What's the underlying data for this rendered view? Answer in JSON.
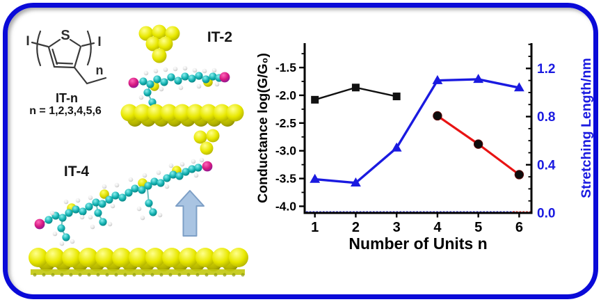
{
  "colors": {
    "frame": "#0a0ad8",
    "chart_blue": "#1a1ae0",
    "chart_red": "#e81313",
    "gold": "#e8e800",
    "arrow_fill": "#a9c4e2",
    "arrow_edge": "#7d9fc6"
  },
  "left_panel": {
    "structure": {
      "iodine_left": "I",
      "iodine_right": "I",
      "sulfur": "S",
      "repeat_subscript": "n",
      "name": "IT-n",
      "series_note": "n = 1,2,3,4,5,6"
    },
    "it2": {
      "label": "IT-2"
    },
    "it4": {
      "label": "IT-4"
    }
  },
  "chart_data": {
    "type": "line",
    "title": "",
    "xlabel": "Number of Units n",
    "ylabel_left": "Conductance log(G/G₀)",
    "ylabel_right": "Stretching Length/nm",
    "xlim": [
      0.75,
      6.3
    ],
    "ylim_left": [
      -4.12,
      -1.06
    ],
    "ylim_right": [
      0,
      1.41
    ],
    "xticks": [
      "1",
      "2",
      "3",
      "4",
      "5",
      "6"
    ],
    "yticks_left": [
      "-1.5",
      "-2.0",
      "-2.5",
      "-3.0",
      "-3.5",
      "-4.0"
    ],
    "yticks_right": [
      "0.0",
      "0.4",
      "0.8",
      "1.2"
    ],
    "yminor_left": [
      -1.25,
      -1.75,
      -2.25,
      -2.75,
      -3.25,
      -3.75
    ],
    "yminor_right": [
      0.1,
      0.2,
      0.3,
      0.5,
      0.6,
      0.7,
      0.9,
      1.0,
      1.1,
      1.3,
      1.4
    ],
    "right_axis_color": "#1a1ae0",
    "grid": false,
    "legend": "none",
    "series": [
      {
        "name": "Conductance log(G/G0), n=1-3",
        "axis": "left",
        "x": [
          1,
          2,
          3
        ],
        "y": [
          -2.08,
          -1.86,
          -2.02
        ],
        "line_color": "#111111",
        "marker": "square",
        "marker_color": "#111111"
      },
      {
        "name": "Stretching Length/nm",
        "axis": "right",
        "x": [
          1,
          2,
          3,
          4,
          5,
          6
        ],
        "y": [
          0.28,
          0.25,
          0.54,
          1.1,
          1.11,
          1.04
        ],
        "line_color": "#1a1ae0",
        "marker": "triangle",
        "marker_color": "#1a1ae0"
      },
      {
        "name": "Conductance log(G/G0), n=4-6",
        "axis": "left",
        "x": [
          4,
          5,
          6
        ],
        "y": [
          -2.37,
          -2.88,
          -3.43
        ],
        "line_color": "#e81313",
        "marker": "circle",
        "marker_color": "#0d0d0d"
      }
    ]
  }
}
